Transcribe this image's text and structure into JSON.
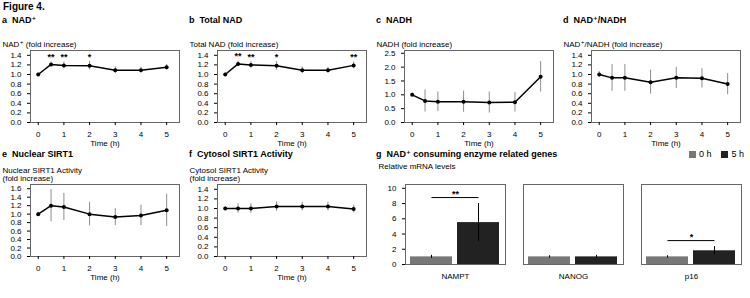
{
  "title": "Figure 4.",
  "chart_data": [
    {
      "type": "line",
      "title": "a  NAD⁺",
      "x_label": "Time (h)",
      "y_label": "NAD⁺ (fold increase)",
      "x": [
        0,
        0.5,
        1,
        2,
        3,
        4,
        5
      ],
      "values": [
        1.0,
        1.21,
        1.19,
        1.18,
        1.09,
        1.09,
        1.15
      ],
      "errors": [
        0.03,
        0.05,
        0.07,
        0.09,
        0.07,
        0.06,
        0.06
      ],
      "marker": "circle",
      "xlim": [
        -0.3,
        5.5
      ],
      "xticks": [
        0,
        1,
        2,
        3,
        4,
        5
      ],
      "ylim": [
        0.0,
        1.5
      ],
      "yticks": [
        {
          "value": 0,
          "label": "0.0"
        },
        0.2,
        0.4,
        0.6,
        0.8,
        {
          "value": 1,
          "label": "1.0"
        },
        1.2,
        1.4
      ],
      "annotations": [
        {
          "x": 0.5,
          "text": "**"
        },
        {
          "x": 1,
          "text": "**"
        },
        {
          "x": 2,
          "text": "*"
        }
      ]
    },
    {
      "type": "line",
      "title": "b  Total NAD",
      "x_label": "Time (h)",
      "y_label": "Total NAD (fold increase)",
      "x": [
        0,
        0.5,
        1,
        2,
        3,
        4,
        5
      ],
      "values": [
        1.0,
        1.22,
        1.2,
        1.18,
        1.09,
        1.09,
        1.19
      ],
      "errors": [
        0.03,
        0.06,
        0.07,
        0.09,
        0.07,
        0.06,
        0.07
      ],
      "marker": "circle",
      "xlim": [
        -0.3,
        5.5
      ],
      "xticks": [
        0,
        1,
        2,
        3,
        4,
        5
      ],
      "ylim": [
        0.0,
        1.5
      ],
      "yticks": [
        {
          "value": 0,
          "label": "0.0"
        },
        0.2,
        0.4,
        0.6,
        0.8,
        {
          "value": 1,
          "label": "1.0"
        },
        1.2,
        1.4
      ],
      "annotations": [
        {
          "x": 0.5,
          "text": "**"
        },
        {
          "x": 1,
          "text": "**"
        },
        {
          "x": 2,
          "text": "*"
        },
        {
          "x": 5,
          "text": "**"
        }
      ]
    },
    {
      "type": "line",
      "title": "c  NADH",
      "x_label": "Time (h)",
      "y_label": "NADH (fold increase)",
      "x": [
        0,
        0.5,
        1,
        2,
        3,
        4,
        5
      ],
      "values": [
        1.0,
        0.78,
        0.75,
        0.75,
        0.72,
        0.73,
        1.65
      ],
      "errors": [
        0.06,
        0.4,
        0.35,
        0.38,
        0.38,
        0.35,
        0.55
      ],
      "marker": "circle",
      "xlim": [
        -0.3,
        5.5
      ],
      "xticks": [
        0,
        1,
        2,
        3,
        4,
        5
      ],
      "ylim": [
        0.0,
        2.6
      ],
      "yticks": [
        {
          "value": 0,
          "label": "0.0"
        },
        0.5,
        {
          "value": 1,
          "label": "1.0"
        },
        1.5,
        {
          "value": 2,
          "label": "2.0"
        },
        2.5
      ]
    },
    {
      "type": "line",
      "title": "d  NAD⁺/NADH",
      "x_label": "Time (h)",
      "y_label": "NAD⁺/NADH (fold increase)",
      "x": [
        0,
        0.5,
        1,
        2,
        3,
        4,
        5
      ],
      "values": [
        1.0,
        0.93,
        0.93,
        0.84,
        0.93,
        0.92,
        0.8
      ],
      "errors": [
        0.06,
        0.28,
        0.28,
        0.25,
        0.22,
        0.2,
        0.22
      ],
      "marker": "circle",
      "xlim": [
        -0.3,
        5.5
      ],
      "xticks": [
        0,
        1,
        2,
        3,
        4,
        5
      ],
      "ylim": [
        0.0,
        1.5
      ],
      "yticks": [
        {
          "value": 0,
          "label": "0.0"
        },
        0.2,
        0.4,
        0.6,
        0.8,
        {
          "value": 1,
          "label": "1.0"
        },
        1.2,
        1.4
      ]
    },
    {
      "type": "line",
      "title": "e  Nuclear SIRT1",
      "x_label": "Time (h)",
      "y_label": "Nuclear SIRT1 Activity\n(fold increase)",
      "x": [
        0,
        0.5,
        1,
        2,
        3,
        4,
        5
      ],
      "values": [
        1.0,
        1.2,
        1.17,
        1.0,
        0.93,
        0.97,
        1.09
      ],
      "errors": [
        0.05,
        0.38,
        0.32,
        0.28,
        0.2,
        0.24,
        0.38
      ],
      "marker": "circle",
      "xlim": [
        -0.3,
        5.5
      ],
      "xticks": [
        0,
        1,
        2,
        3,
        4,
        5
      ],
      "ylim": [
        0.0,
        1.7
      ],
      "yticks": [
        {
          "value": 0,
          "label": "0.0"
        },
        0.2,
        0.4,
        0.6,
        0.8,
        {
          "value": 1,
          "label": "1.0"
        },
        1.2,
        1.4,
        1.6
      ]
    },
    {
      "type": "line",
      "title": "f  Cytosol SIRT1 Activity",
      "x_label": "Time (h)",
      "y_label": "Cytosol SIRT1 Activity\n(fold increase)",
      "x": [
        0,
        0.5,
        1,
        2,
        3,
        4,
        5
      ],
      "values": [
        1.0,
        1.0,
        1.0,
        1.04,
        1.04,
        1.04,
        0.99
      ],
      "errors": [
        0.04,
        0.1,
        0.1,
        0.1,
        0.09,
        0.09,
        0.08
      ],
      "marker": "circle",
      "xlim": [
        -0.3,
        5.5
      ],
      "xticks": [
        0,
        1,
        2,
        3,
        4,
        5
      ],
      "ylim": [
        0.0,
        1.5
      ],
      "yticks": [
        {
          "value": 0,
          "label": "0.0"
        },
        0.2,
        0.4,
        0.6,
        0.8,
        {
          "value": 1,
          "label": "1.0"
        },
        1.2,
        1.4
      ]
    },
    {
      "type": "bar",
      "title": "g  NAD⁺ consuming enzyme related genes",
      "y_label": "Relative mRNA levels",
      "categories": [
        "NAMPT",
        "NANOG",
        "p16"
      ],
      "series": [
        {
          "name": "0 h",
          "color": "#777777",
          "values": [
            1.0,
            1.0,
            1.0
          ],
          "errors": [
            0.2,
            0.15,
            0.15
          ]
        },
        {
          "name": "5 h",
          "color": "#222222",
          "values": [
            5.5,
            1.0,
            1.8
          ],
          "errors": [
            2.5,
            0.2,
            0.55
          ]
        }
      ],
      "ylim": [
        0,
        10.5
      ],
      "yticks": [
        0,
        2,
        4,
        6,
        8,
        10
      ],
      "legend": "top-right",
      "annotations": [
        {
          "category": "NAMPT",
          "text": "**"
        },
        {
          "category": "p16",
          "text": "*"
        }
      ]
    }
  ]
}
